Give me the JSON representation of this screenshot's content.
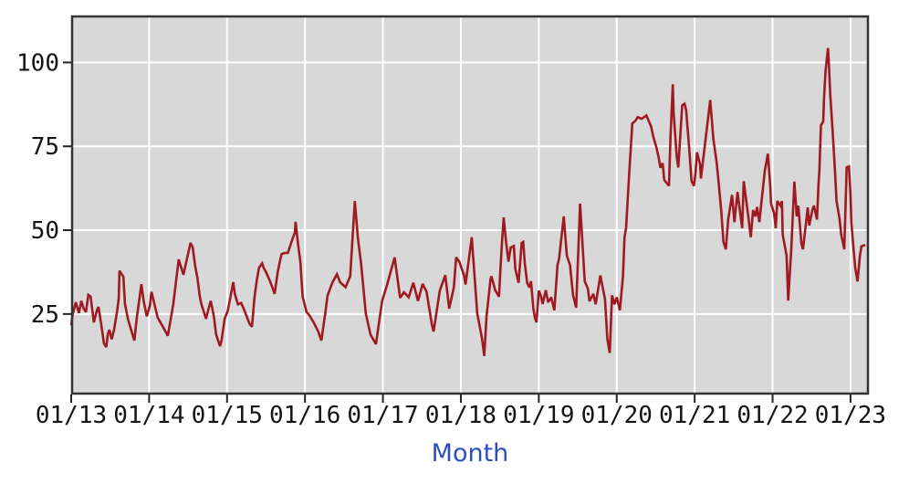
{
  "chart_data": {
    "type": "line",
    "title": "",
    "xlabel": "Month",
    "ylabel": "",
    "x_tick_labels": [
      "01/13",
      "01/14",
      "01/15",
      "01/16",
      "01/17",
      "01/18",
      "01/19",
      "01/20",
      "01/21",
      "01/22",
      "01/23"
    ],
    "x_tick_positions": [
      0,
      1,
      2,
      3,
      4,
      5,
      6,
      7,
      8,
      9,
      10
    ],
    "x_unit_note": "x = years after Jan 2013 (monthly/weekly time axis)",
    "y_ticks": [
      25,
      50,
      75,
      100
    ],
    "x_range": [
      0,
      10.235
    ],
    "y_range": [
      1,
      114
    ],
    "grid": true,
    "legend": false,
    "colors": {
      "line": "#9e1a20",
      "plot_bg": "#d8d8d8",
      "grid": "#ffffff",
      "border": "#333333",
      "tick": "#222222",
      "tick_label": "#141414",
      "xlabel": "#2b4ec4",
      "page_bg": "#ffffff"
    },
    "series": [
      {
        "name": "value",
        "points": [
          [
            0.0,
            21.7
          ],
          [
            0.02,
            25
          ],
          [
            0.06,
            28.5
          ],
          [
            0.1,
            25.3
          ],
          [
            0.13,
            28.9
          ],
          [
            0.16,
            26.6
          ],
          [
            0.19,
            25.6
          ],
          [
            0.22,
            30.7
          ],
          [
            0.25,
            30.2
          ],
          [
            0.29,
            22.5
          ],
          [
            0.33,
            26.1
          ],
          [
            0.35,
            27.1
          ],
          [
            0.39,
            21.2
          ],
          [
            0.42,
            16.2
          ],
          [
            0.45,
            15.1
          ],
          [
            0.47,
            18.9
          ],
          [
            0.49,
            20.3
          ],
          [
            0.52,
            17.5
          ],
          [
            0.55,
            20.3
          ],
          [
            0.59,
            26
          ],
          [
            0.61,
            29.7
          ],
          [
            0.62,
            37.9
          ],
          [
            0.67,
            36.1
          ],
          [
            0.69,
            28
          ],
          [
            0.73,
            23.4
          ],
          [
            0.78,
            19.4
          ],
          [
            0.81,
            17.1
          ],
          [
            0.84,
            23.4
          ],
          [
            0.9,
            33.9
          ],
          [
            0.93,
            28.9
          ],
          [
            0.97,
            24.3
          ],
          [
            1.01,
            27.5
          ],
          [
            1.03,
            31.6
          ],
          [
            1.11,
            23.9
          ],
          [
            1.19,
            20.7
          ],
          [
            1.24,
            18.5
          ],
          [
            1.31,
            28
          ],
          [
            1.38,
            41.3
          ],
          [
            1.44,
            36.7
          ],
          [
            1.53,
            46.2
          ],
          [
            1.56,
            44.8
          ],
          [
            1.59,
            39.4
          ],
          [
            1.62,
            35.8
          ],
          [
            1.65,
            30.3
          ],
          [
            1.67,
            28
          ],
          [
            1.73,
            23.6
          ],
          [
            1.77,
            27.1
          ],
          [
            1.79,
            28.9
          ],
          [
            1.83,
            24.4
          ],
          [
            1.86,
            18.9
          ],
          [
            1.91,
            15.4
          ],
          [
            1.93,
            17.2
          ],
          [
            1.97,
            23.6
          ],
          [
            2.01,
            26
          ],
          [
            2.08,
            34.5
          ],
          [
            2.1,
            31
          ],
          [
            2.14,
            27.9
          ],
          [
            2.18,
            28.3
          ],
          [
            2.21,
            26.8
          ],
          [
            2.29,
            22
          ],
          [
            2.32,
            21.2
          ],
          [
            2.35,
            29.6
          ],
          [
            2.38,
            34.8
          ],
          [
            2.41,
            38.8
          ],
          [
            2.45,
            40.1
          ],
          [
            2.47,
            38.8
          ],
          [
            2.5,
            37.5
          ],
          [
            2.55,
            34.8
          ],
          [
            2.59,
            32.4
          ],
          [
            2.61,
            31
          ],
          [
            2.65,
            37.5
          ],
          [
            2.68,
            41
          ],
          [
            2.7,
            42.9
          ],
          [
            2.74,
            43.2
          ],
          [
            2.78,
            43.2
          ],
          [
            2.82,
            46
          ],
          [
            2.84,
            47.4
          ],
          [
            2.87,
            49.3
          ],
          [
            2.88,
            52.5
          ],
          [
            2.91,
            46
          ],
          [
            2.94,
            40.6
          ],
          [
            2.97,
            30.2
          ],
          [
            3.02,
            25.6
          ],
          [
            3.06,
            24.5
          ],
          [
            3.11,
            22.5
          ],
          [
            3.17,
            19.8
          ],
          [
            3.21,
            17.1
          ],
          [
            3.26,
            25.2
          ],
          [
            3.29,
            30.5
          ],
          [
            3.35,
            34.3
          ],
          [
            3.41,
            36.9
          ],
          [
            3.45,
            34.5
          ],
          [
            3.52,
            33
          ],
          [
            3.58,
            36.2
          ],
          [
            3.64,
            58.7
          ],
          [
            3.68,
            47.5
          ],
          [
            3.72,
            39.9
          ],
          [
            3.78,
            25.2
          ],
          [
            3.84,
            18.9
          ],
          [
            3.91,
            16
          ],
          [
            3.99,
            28.9
          ],
          [
            4.05,
            33.4
          ],
          [
            4.15,
            41.9
          ],
          [
            4.22,
            29.8
          ],
          [
            4.27,
            31.5
          ],
          [
            4.33,
            30
          ],
          [
            4.39,
            34.3
          ],
          [
            4.45,
            28.9
          ],
          [
            4.51,
            34
          ],
          [
            4.56,
            31.6
          ],
          [
            4.63,
            21.6
          ],
          [
            4.65,
            19.8
          ],
          [
            4.73,
            32
          ],
          [
            4.8,
            36.6
          ],
          [
            4.85,
            26.6
          ],
          [
            4.91,
            33
          ],
          [
            4.94,
            41.9
          ],
          [
            4.98,
            40.6
          ],
          [
            5.04,
            36.6
          ],
          [
            5.06,
            33.8
          ],
          [
            5.14,
            47.9
          ],
          [
            5.21,
            25.2
          ],
          [
            5.27,
            17.9
          ],
          [
            5.3,
            12.5
          ],
          [
            5.33,
            24.3
          ],
          [
            5.38,
            35.2
          ],
          [
            5.39,
            36.3
          ],
          [
            5.41,
            34.8
          ],
          [
            5.44,
            32.1
          ],
          [
            5.49,
            30.2
          ],
          [
            5.51,
            39.2
          ],
          [
            5.53,
            47
          ],
          [
            5.55,
            53.8
          ],
          [
            5.58,
            46.5
          ],
          [
            5.61,
            40.6
          ],
          [
            5.64,
            44.8
          ],
          [
            5.68,
            45.3
          ],
          [
            5.7,
            38.4
          ],
          [
            5.74,
            34.3
          ],
          [
            5.78,
            46.2
          ],
          [
            5.8,
            46.5
          ],
          [
            5.82,
            40.2
          ],
          [
            5.85,
            34.3
          ],
          [
            5.88,
            32.9
          ],
          [
            5.9,
            34.8
          ],
          [
            5.93,
            26.6
          ],
          [
            5.95,
            23.9
          ],
          [
            5.97,
            22.5
          ],
          [
            6.0,
            32
          ],
          [
            6.03,
            30.2
          ],
          [
            6.05,
            28
          ],
          [
            6.09,
            32.1
          ],
          [
            6.12,
            28.5
          ],
          [
            6.16,
            30
          ],
          [
            6.2,
            26.1
          ],
          [
            6.24,
            39.7
          ],
          [
            6.26,
            41.5
          ],
          [
            6.32,
            54.1
          ],
          [
            6.36,
            42.4
          ],
          [
            6.4,
            39.7
          ],
          [
            6.44,
            30.6
          ],
          [
            6.48,
            26.9
          ],
          [
            6.53,
            57.9
          ],
          [
            6.59,
            34.8
          ],
          [
            6.63,
            32.5
          ],
          [
            6.65,
            28.8
          ],
          [
            6.7,
            31
          ],
          [
            6.73,
            27.9
          ],
          [
            6.79,
            36.5
          ],
          [
            6.85,
            29.4
          ],
          [
            6.88,
            17.5
          ],
          [
            6.91,
            13.4
          ],
          [
            6.94,
            30.6
          ],
          [
            6.97,
            27.9
          ],
          [
            7.0,
            30
          ],
          [
            7.04,
            26.1
          ],
          [
            7.08,
            36.2
          ],
          [
            7.1,
            47.9
          ],
          [
            7.12,
            50.6
          ],
          [
            7.14,
            58.7
          ],
          [
            7.16,
            66.8
          ],
          [
            7.18,
            74.2
          ],
          [
            7.2,
            81.8
          ],
          [
            7.24,
            82.6
          ],
          [
            7.27,
            83.7
          ],
          [
            7.32,
            83.2
          ],
          [
            7.38,
            84.2
          ],
          [
            7.44,
            81
          ],
          [
            7.47,
            77.8
          ],
          [
            7.51,
            74.6
          ],
          [
            7.54,
            71.4
          ],
          [
            7.56,
            68.6
          ],
          [
            7.59,
            70
          ],
          [
            7.61,
            65
          ],
          [
            7.67,
            63.2
          ],
          [
            7.69,
            78
          ],
          [
            7.72,
            93.5
          ],
          [
            7.73,
            85
          ],
          [
            7.77,
            72
          ],
          [
            7.79,
            68.7
          ],
          [
            7.84,
            87.2
          ],
          [
            7.87,
            87.7
          ],
          [
            7.89,
            85.9
          ],
          [
            7.93,
            74.2
          ],
          [
            7.96,
            64.7
          ],
          [
            7.99,
            63.2
          ],
          [
            8.01,
            66.8
          ],
          [
            8.03,
            73.2
          ],
          [
            8.07,
            69.6
          ],
          [
            8.08,
            65.4
          ],
          [
            8.13,
            75
          ],
          [
            8.2,
            88.8
          ],
          [
            8.24,
            77.3
          ],
          [
            8.28,
            70.5
          ],
          [
            8.3,
            66
          ],
          [
            8.34,
            56
          ],
          [
            8.37,
            46.5
          ],
          [
            8.4,
            44.3
          ],
          [
            8.43,
            53.2
          ],
          [
            8.48,
            60.5
          ],
          [
            8.51,
            52.4
          ],
          [
            8.55,
            61.4
          ],
          [
            8.61,
            50.6
          ],
          [
            8.63,
            64.6
          ],
          [
            8.69,
            53.7
          ],
          [
            8.72,
            47.9
          ],
          [
            8.75,
            56
          ],
          [
            8.78,
            54.1
          ],
          [
            8.8,
            56.9
          ],
          [
            8.83,
            52.4
          ],
          [
            8.9,
            67.7
          ],
          [
            8.94,
            72.8
          ],
          [
            8.97,
            63
          ],
          [
            8.98,
            58
          ],
          [
            9.02,
            55
          ],
          [
            9.04,
            50.6
          ],
          [
            9.06,
            58.7
          ],
          [
            9.1,
            57.3
          ],
          [
            9.12,
            58.7
          ],
          [
            9.13,
            48.7
          ],
          [
            9.18,
            42.4
          ],
          [
            9.2,
            29
          ],
          [
            9.24,
            44.3
          ],
          [
            9.28,
            64.5
          ],
          [
            9.31,
            54.1
          ],
          [
            9.33,
            57.3
          ],
          [
            9.37,
            46
          ],
          [
            9.39,
            44.3
          ],
          [
            9.43,
            52.4
          ],
          [
            9.45,
            56.8
          ],
          [
            9.47,
            51.4
          ],
          [
            9.51,
            56
          ],
          [
            9.53,
            57.3
          ],
          [
            9.57,
            53.2
          ],
          [
            9.59,
            64.1
          ],
          [
            9.6,
            67.7
          ],
          [
            9.62,
            81.3
          ],
          [
            9.65,
            82.3
          ],
          [
            9.66,
            89.4
          ],
          [
            9.68,
            97.6
          ],
          [
            9.71,
            104.3
          ],
          [
            9.72,
            100.8
          ],
          [
            9.74,
            90.5
          ],
          [
            9.77,
            79.6
          ],
          [
            9.8,
            67.7
          ],
          [
            9.82,
            58.7
          ],
          [
            9.86,
            53.2
          ],
          [
            9.88,
            48.7
          ],
          [
            9.92,
            44.3
          ],
          [
            9.95,
            68.7
          ],
          [
            9.98,
            69
          ],
          [
            10.0,
            60.5
          ],
          [
            10.01,
            52.4
          ],
          [
            10.04,
            44.3
          ],
          [
            10.06,
            38.8
          ],
          [
            10.09,
            34.7
          ],
          [
            10.12,
            42.4
          ],
          [
            10.14,
            45.2
          ],
          [
            10.19,
            45.6
          ]
        ]
      }
    ]
  }
}
